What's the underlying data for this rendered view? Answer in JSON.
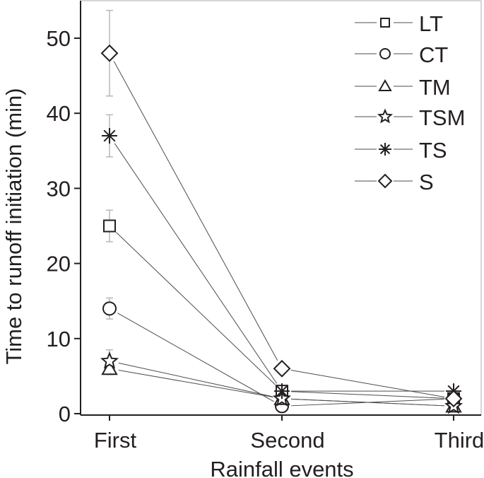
{
  "chart_data": {
    "type": "line",
    "title": "",
    "xlabel": "Rainfall events",
    "ylabel": "Time to runoff initiation (min)",
    "categories": [
      "First",
      "Second",
      "Third"
    ],
    "ylim": [
      0,
      55
    ],
    "yticks": [
      0,
      10,
      20,
      30,
      40,
      50
    ],
    "grid": false,
    "legend_position": "top-right",
    "error_bars": true,
    "series": [
      {
        "name": "LT",
        "marker": "square",
        "values": [
          25,
          3,
          2
        ],
        "errors": [
          2.1,
          0,
          0
        ]
      },
      {
        "name": "CT",
        "marker": "circle",
        "values": [
          14,
          1,
          2
        ],
        "errors": [
          1.4,
          0,
          0
        ]
      },
      {
        "name": "TM",
        "marker": "triangle",
        "values": [
          6,
          2,
          1
        ],
        "errors": [
          0.8,
          0,
          0
        ]
      },
      {
        "name": "TSM",
        "marker": "star",
        "values": [
          7,
          2,
          1
        ],
        "errors": [
          1.5,
          0,
          0
        ]
      },
      {
        "name": "TS",
        "marker": "asterisk",
        "values": [
          37,
          3,
          3
        ],
        "errors": [
          2.8,
          0.3,
          0
        ]
      },
      {
        "name": "S",
        "marker": "diamond",
        "values": [
          48,
          6,
          2
        ],
        "errors": [
          5.7,
          0,
          0
        ]
      }
    ]
  },
  "colors": {
    "axis": "#231f20",
    "line": "#4d4d4d",
    "marker": "#231f20",
    "error_bar": "#b8b8b8",
    "frame": "#c8c8c8"
  }
}
